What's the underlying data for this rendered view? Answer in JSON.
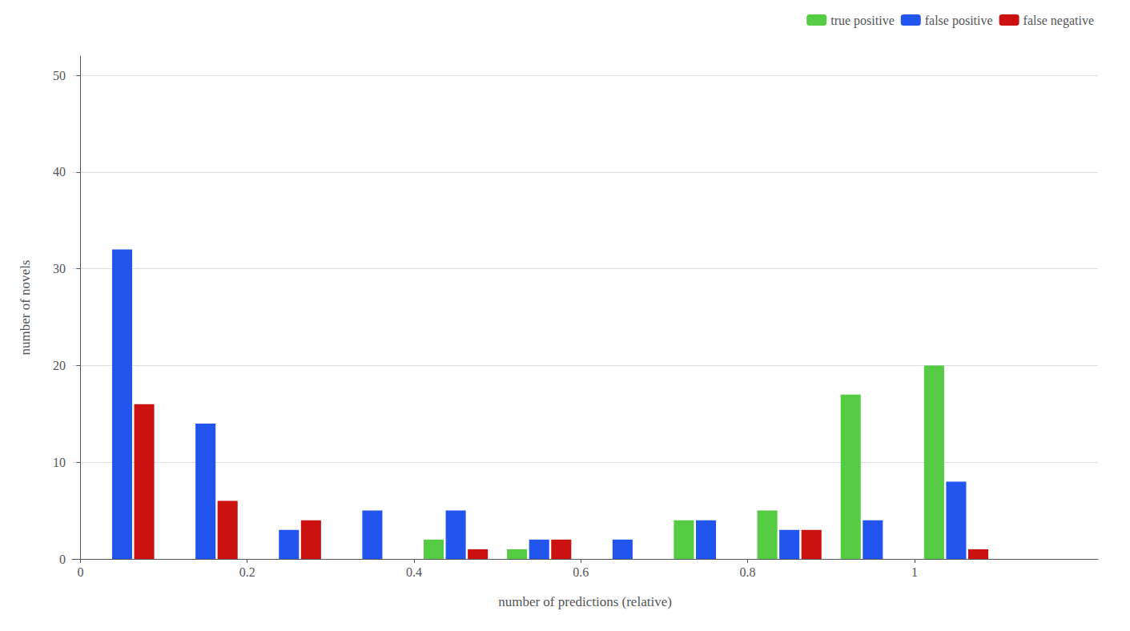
{
  "chart_data": {
    "type": "bar",
    "xlabel": "number of predictions (relative)",
    "ylabel": "number of novels",
    "x": [
      0.05,
      0.15,
      0.25,
      0.35,
      0.45,
      0.55,
      0.65,
      0.75,
      0.85,
      0.95,
      1.05,
      1.15
    ],
    "series": [
      {
        "name": "true positive",
        "color": "#55cc44",
        "values": [
          0,
          0,
          0,
          0,
          2,
          1,
          0,
          4,
          5,
          17,
          20,
          0
        ]
      },
      {
        "name": "false positive",
        "color": "#2255ee",
        "values": [
          32,
          14,
          3,
          5,
          5,
          2,
          2,
          4,
          3,
          4,
          8,
          0
        ]
      },
      {
        "name": "false negative",
        "color": "#cc1111",
        "values": [
          16,
          6,
          4,
          0,
          1,
          2,
          0,
          0,
          3,
          0,
          1,
          0
        ]
      }
    ],
    "xlim": [
      -0.01,
      1.22
    ],
    "xticks": [
      0,
      0.2,
      0.4,
      0.6,
      0.8,
      1
    ],
    "ylim": [
      0,
      52
    ],
    "yticks": [
      0,
      10,
      20,
      30,
      40,
      50
    ],
    "grid": true,
    "legend": "upper right"
  }
}
